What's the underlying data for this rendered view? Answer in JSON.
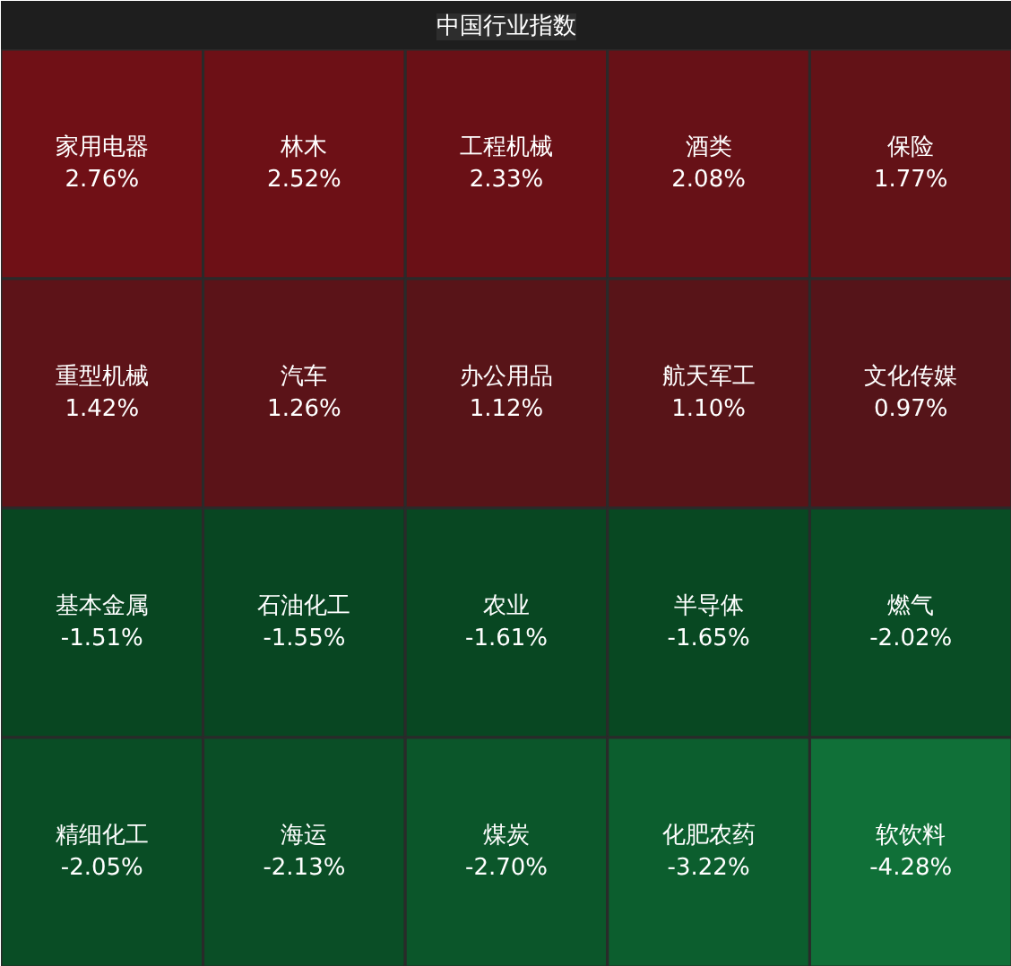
{
  "chart_data": {
    "type": "other",
    "title": "中国行业指数",
    "categories": [
      "家用电器",
      "林木",
      "工程机械",
      "酒类",
      "保险",
      "重型机械",
      "汽车",
      "办公用品",
      "航天军工",
      "文化传媒",
      "基本金属",
      "石油化工",
      "农业",
      "半导体",
      "燃气",
      "精细化工",
      "海运",
      "煤炭",
      "化肥农药",
      "软饮料"
    ],
    "values": [
      2.76,
      2.52,
      2.33,
      2.08,
      1.77,
      1.42,
      1.26,
      1.12,
      1.1,
      0.97,
      -1.51,
      -1.55,
      -1.61,
      -1.65,
      -2.02,
      -2.05,
      -2.13,
      -2.7,
      -3.22,
      -4.28
    ],
    "value_labels": [
      "2.76%",
      "2.52%",
      "2.33%",
      "2.08%",
      "1.77%",
      "1.42%",
      "1.26%",
      "1.12%",
      "1.10%",
      "0.97%",
      "-1.51%",
      "-1.55%",
      "-1.61%",
      "-1.65%",
      "-2.02%",
      "-2.05%",
      "-2.13%",
      "-2.70%",
      "-3.22%",
      "-4.28%"
    ]
  }
}
